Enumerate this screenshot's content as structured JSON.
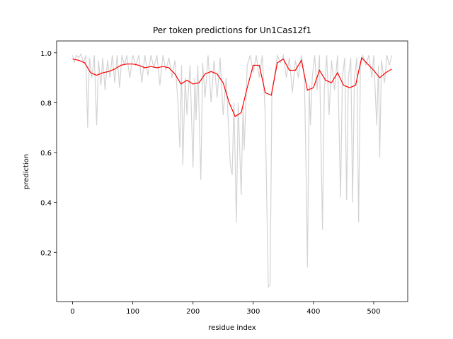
{
  "chart_data": {
    "type": "line",
    "title": "Per token predictions for Un1Cas12f1",
    "x_label": "residue index",
    "y_label": "prediction",
    "xlim": [
      -26.5,
      556.5
    ],
    "xticks": [
      0,
      100,
      200,
      300,
      400,
      500
    ],
    "ylim": [
      0.0025,
      1.0475
    ],
    "yticks": [
      0.2,
      0.4,
      0.6,
      0.8,
      {
        "value": 1.0,
        "label": "1.0"
      }
    ],
    "series": [
      {
        "color": "#d3d3d3",
        "x": [
          0,
          3,
          6,
          10,
          14,
          18,
          22,
          25,
          28,
          32,
          36,
          40,
          43,
          47,
          50,
          54,
          58,
          62,
          66,
          70,
          74,
          78,
          82,
          86,
          90,
          95,
          100,
          105,
          110,
          115,
          120,
          125,
          130,
          135,
          140,
          145,
          150,
          155,
          160,
          165,
          170,
          175,
          178,
          181,
          183,
          187,
          190,
          195,
          200,
          203,
          205,
          208,
          213,
          216,
          220,
          225,
          230,
          235,
          240,
          245,
          250,
          255,
          260,
          262,
          265,
          268,
          272,
          275,
          280,
          283,
          285,
          290,
          295,
          300,
          305,
          310,
          315,
          320,
          325,
          328,
          331,
          335,
          340,
          345,
          350,
          355,
          360,
          365,
          370,
          375,
          380,
          385,
          388,
          390,
          393,
          395,
          398,
          402,
          406,
          410,
          415,
          418,
          422,
          426,
          430,
          435,
          440,
          445,
          448,
          452,
          455,
          458,
          462,
          465,
          468,
          472,
          475,
          478,
          482,
          487,
          492,
          497,
          500,
          505,
          508,
          510,
          513,
          518,
          522,
          526,
          530
        ],
        "values": [
          0.99,
          0.96,
          0.99,
          0.98,
          0.995,
          0.96,
          0.99,
          0.7,
          0.98,
          0.9,
          0.99,
          0.71,
          0.97,
          0.87,
          0.98,
          0.85,
          0.97,
          0.9,
          0.99,
          0.88,
          0.99,
          0.86,
          0.99,
          0.95,
          0.99,
          0.9,
          0.99,
          0.95,
          0.99,
          0.88,
          0.99,
          0.91,
          0.99,
          0.94,
          0.99,
          0.87,
          0.99,
          0.93,
          0.98,
          0.9,
          0.97,
          0.8,
          0.62,
          0.95,
          0.55,
          0.9,
          0.75,
          0.95,
          0.54,
          0.9,
          0.73,
          0.95,
          0.49,
          0.96,
          0.82,
          0.99,
          0.8,
          0.97,
          0.82,
          0.98,
          0.75,
          0.9,
          0.65,
          0.55,
          0.51,
          0.8,
          0.32,
          0.8,
          0.43,
          0.78,
          0.61,
          0.95,
          0.99,
          0.92,
          0.99,
          0.9,
          0.99,
          0.75,
          0.06,
          0.07,
          0.85,
          0.9,
          0.99,
          0.96,
          0.99,
          0.9,
          0.98,
          0.84,
          0.97,
          0.9,
          0.99,
          0.9,
          0.5,
          0.14,
          0.87,
          0.71,
          0.9,
          0.99,
          0.85,
          0.99,
          0.29,
          0.85,
          0.99,
          0.75,
          0.97,
          0.85,
          0.99,
          0.42,
          0.9,
          0.98,
          0.41,
          0.9,
          0.98,
          0.4,
          0.9,
          0.98,
          0.32,
          0.95,
          0.99,
          0.95,
          0.99,
          0.9,
          0.99,
          0.71,
          0.95,
          0.58,
          0.97,
          0.88,
          0.99,
          0.95,
          0.99
        ]
      },
      {
        "color": "#ff0000",
        "x": [
          0,
          10,
          20,
          30,
          40,
          50,
          60,
          70,
          80,
          90,
          100,
          110,
          120,
          130,
          140,
          150,
          160,
          170,
          180,
          190,
          200,
          210,
          220,
          230,
          240,
          250,
          260,
          270,
          280,
          290,
          300,
          310,
          320,
          330,
          340,
          350,
          360,
          370,
          380,
          390,
          400,
          410,
          420,
          430,
          440,
          450,
          460,
          470,
          480,
          490,
          500,
          510,
          520,
          530
        ],
        "values": [
          0.975,
          0.97,
          0.96,
          0.92,
          0.91,
          0.92,
          0.925,
          0.935,
          0.95,
          0.955,
          0.955,
          0.95,
          0.94,
          0.945,
          0.94,
          0.945,
          0.94,
          0.915,
          0.875,
          0.89,
          0.875,
          0.88,
          0.915,
          0.925,
          0.915,
          0.88,
          0.8,
          0.745,
          0.76,
          0.86,
          0.95,
          0.95,
          0.84,
          0.83,
          0.96,
          0.975,
          0.93,
          0.93,
          0.97,
          0.85,
          0.86,
          0.93,
          0.89,
          0.88,
          0.92,
          0.87,
          0.86,
          0.87,
          0.98,
          0.955,
          0.93,
          0.9,
          0.92,
          0.935
        ]
      }
    ]
  }
}
